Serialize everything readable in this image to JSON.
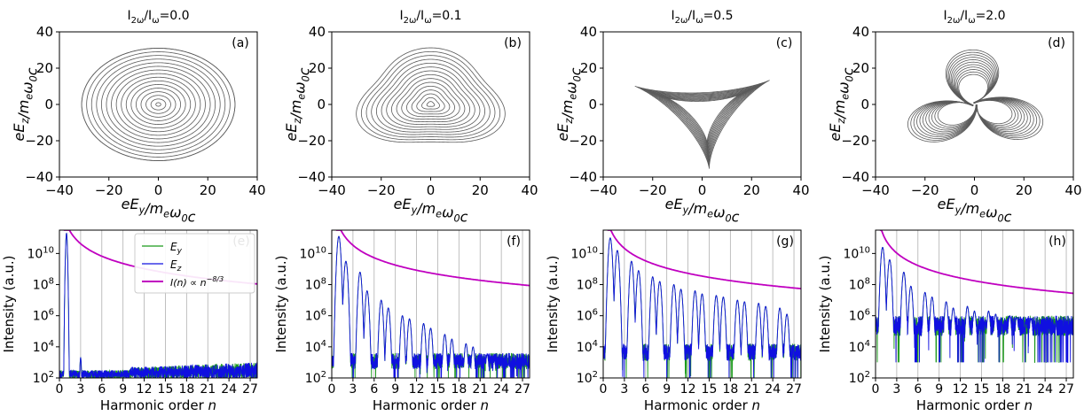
{
  "top_row_axes": {
    "xlabel": "eE_y/m_eω_0c",
    "ylabel": "eE_z/m_eω_0c",
    "xlim": [
      -40,
      40
    ],
    "ylim": [
      -40,
      40
    ],
    "xticks": [
      "−40",
      "−20",
      "0",
      "20",
      "40"
    ],
    "yticks": [
      "−40",
      "−20",
      "0",
      "20",
      "40"
    ]
  },
  "bottom_row_axes": {
    "xlabel_text": "Harmonic order",
    "xlabel_var": "n",
    "ylabel": "Intensity (a.u.)",
    "xlim": [
      0,
      28
    ],
    "ylim_log10": [
      2,
      11.5
    ],
    "xticks": [
      "0",
      "3",
      "6",
      "9",
      "12",
      "15",
      "18",
      "21",
      "24",
      "27"
    ],
    "yticks": [
      {
        "base": "10",
        "exp": "2",
        "log": 2
      },
      {
        "base": "10",
        "exp": "4",
        "log": 4
      },
      {
        "base": "10",
        "exp": "6",
        "log": 6
      },
      {
        "base": "10",
        "exp": "8",
        "log": 8
      },
      {
        "base": "10",
        "exp": "10",
        "log": 10
      }
    ],
    "grid": "vertical lines at every 3rd harmonic"
  },
  "legend": {
    "placement": "top-right of panel (e)",
    "entries": [
      {
        "label": "E_y",
        "color": "#1a9a1a"
      },
      {
        "label": "E_z",
        "color": "#1010e0"
      },
      {
        "label": "I(n) ∝ n^−8/3",
        "color": "#c000c0"
      }
    ]
  },
  "colors": {
    "phase_curve": "#5a5a5a",
    "Ey": "#1a9a1a",
    "Ez": "#1010e0",
    "powerlaw": "#c000c0",
    "grid": "#b0b0b0"
  },
  "chart_data": [
    {
      "type": "line",
      "panel": "(a)",
      "title": "I_2ω/I_ω=0.0",
      "shape": "nested circles (spiral)",
      "r_max": 31,
      "xlim": [
        -40,
        40
      ],
      "ylim": [
        -40,
        40
      ]
    },
    {
      "type": "line",
      "panel": "(b)",
      "title": "I_2ω/I_ω=0.1",
      "shape": "rounded triangle spiral",
      "vertices": [
        [
          -32,
          -14
        ],
        [
          1,
          34
        ],
        [
          30,
          -16
        ]
      ],
      "bottom_y": -24,
      "xlim": [
        -40,
        40
      ],
      "ylim": [
        -40,
        40
      ]
    },
    {
      "type": "line",
      "panel": "(c)",
      "title": "I_2ω/I_ω=0.5",
      "shape": "deltoid (three cusps)",
      "cusps": [
        [
          -32,
          15
        ],
        [
          29,
          21
        ],
        [
          3,
          -35
        ]
      ],
      "xlim": [
        -40,
        40
      ],
      "ylim": [
        -40,
        40
      ]
    },
    {
      "type": "line",
      "panel": "(d)",
      "title": "I_2ω/I_ω=2.0",
      "shape": "trefoil (three lobes)",
      "lobe_tips": [
        [
          1,
          31
        ],
        [
          -26,
          -15
        ],
        [
          27,
          -14
        ]
      ],
      "xlim": [
        -40,
        40
      ],
      "ylim": [
        -40,
        40
      ]
    },
    {
      "type": "line",
      "panel": "(e)",
      "title": "",
      "log_y": true,
      "xlim": [
        0,
        28
      ],
      "ylim_log10": [
        2,
        11.5
      ],
      "peaks": [
        {
          "n": 1,
          "log10": 11.3
        },
        {
          "n": 3,
          "log10": 3.3
        }
      ],
      "background_log10": [
        2.0,
        3.0
      ],
      "powerlaw_log10_at_n1": 11.9
    },
    {
      "type": "line",
      "panel": "(f)",
      "title": "",
      "log_y": true,
      "xlim": [
        0,
        28
      ],
      "ylim_log10": [
        2,
        11.5
      ],
      "peaks": [
        {
          "n": 1,
          "log10": 11.1
        },
        {
          "n": 2,
          "log10": 9.5
        },
        {
          "n": 4,
          "log10": 8.8
        },
        {
          "n": 5,
          "log10": 7.6
        },
        {
          "n": 7,
          "log10": 7.0
        },
        {
          "n": 8,
          "log10": 6.5
        },
        {
          "n": 10,
          "log10": 6.0
        },
        {
          "n": 11,
          "log10": 5.8
        },
        {
          "n": 13,
          "log10": 5.5
        },
        {
          "n": 14,
          "log10": 5.2
        },
        {
          "n": 16,
          "log10": 4.8
        },
        {
          "n": 17,
          "log10": 4.5
        },
        {
          "n": 19,
          "log10": 4.2
        },
        {
          "n": 20,
          "log10": 4.0
        },
        {
          "n": 22,
          "log10": 3.5
        },
        {
          "n": 23,
          "log10": 3.1
        },
        {
          "n": 25,
          "log10": 2.9
        },
        {
          "n": 26,
          "log10": 2.6
        }
      ],
      "background_log10": [
        2.0,
        3.6
      ],
      "powerlaw_log10_at_n1": 11.8
    },
    {
      "type": "line",
      "panel": "(g)",
      "title": "",
      "log_y": true,
      "xlim": [
        0,
        28
      ],
      "ylim_log10": [
        2,
        11.5
      ],
      "peaks": [
        {
          "n": 1,
          "log10": 11.0
        },
        {
          "n": 2,
          "log10": 10.2
        },
        {
          "n": 4,
          "log10": 9.5
        },
        {
          "n": 5,
          "log10": 8.9
        },
        {
          "n": 7,
          "log10": 8.5
        },
        {
          "n": 8,
          "log10": 8.2
        },
        {
          "n": 10,
          "log10": 8.0
        },
        {
          "n": 11,
          "log10": 7.7
        },
        {
          "n": 13,
          "log10": 7.6
        },
        {
          "n": 14,
          "log10": 7.4
        },
        {
          "n": 16,
          "log10": 7.3
        },
        {
          "n": 17,
          "log10": 7.2
        },
        {
          "n": 19,
          "log10": 7.0
        },
        {
          "n": 20,
          "log10": 6.9
        },
        {
          "n": 22,
          "log10": 6.8
        },
        {
          "n": 23,
          "log10": 6.6
        },
        {
          "n": 25,
          "log10": 6.5
        },
        {
          "n": 26,
          "log10": 6.1
        }
      ],
      "background_log10": [
        2.5,
        4.2
      ],
      "powerlaw_log10_at_n1": 11.6
    },
    {
      "type": "line",
      "panel": "(h)",
      "title": "",
      "log_y": true,
      "xlim": [
        0,
        28
      ],
      "ylim_log10": [
        2,
        11.5
      ],
      "peaks": [
        {
          "n": 1,
          "log10": 10.4
        },
        {
          "n": 2,
          "log10": 9.6
        },
        {
          "n": 4,
          "log10": 8.8
        },
        {
          "n": 5,
          "log10": 7.9
        },
        {
          "n": 7,
          "log10": 7.5
        },
        {
          "n": 8,
          "log10": 7.2
        },
        {
          "n": 10,
          "log10": 6.9
        },
        {
          "n": 11,
          "log10": 6.5
        },
        {
          "n": 13,
          "log10": 6.6
        },
        {
          "n": 14,
          "log10": 6.3
        },
        {
          "n": 16,
          "log10": 6.3
        },
        {
          "n": 17,
          "log10": 6.1
        },
        {
          "n": 19,
          "log10": 6.0
        },
        {
          "n": 20,
          "log10": 5.9
        },
        {
          "n": 22,
          "log10": 5.8
        }
      ],
      "background_log10": [
        4.0,
        6.0
      ],
      "powerlaw_log10_at_n1": 11.3
    }
  ]
}
